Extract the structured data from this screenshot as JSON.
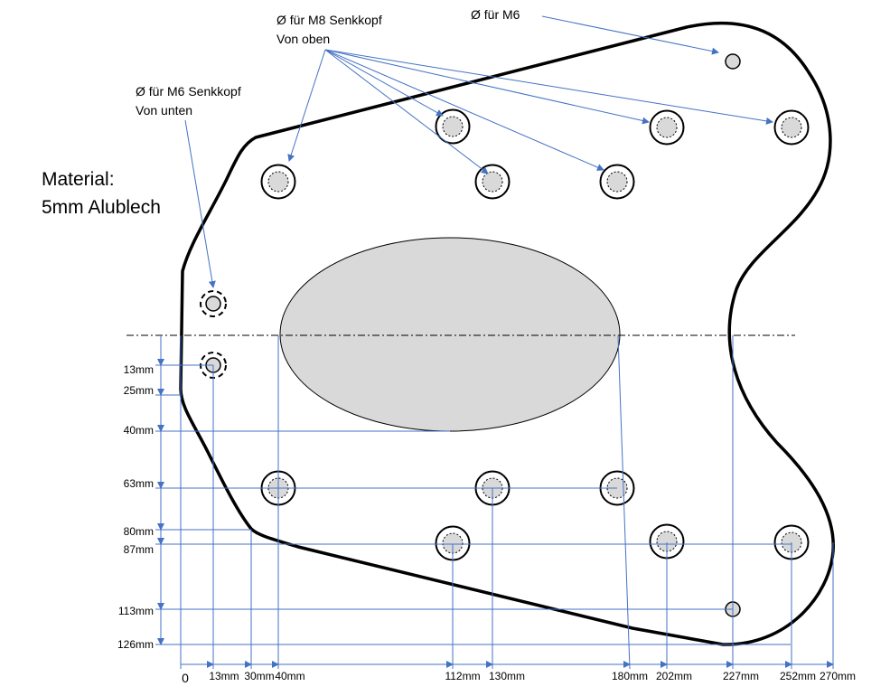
{
  "annotations": [
    {
      "lines": [
        "Ø für M8 Senkkopf",
        "Von oben"
      ]
    },
    {
      "lines": [
        "Ø für M6"
      ]
    },
    {
      "lines": [
        "Ø für M6 Senkkopf",
        "Von unten"
      ]
    }
  ],
  "material": [
    "Material:",
    "5mm Alublech"
  ],
  "vertical_dims": [
    "13mm",
    "25mm",
    "40mm",
    "63mm",
    "80mm",
    "87mm",
    "113mm",
    "126mm"
  ],
  "horizontal_dims": [
    "0",
    "13mm",
    "30mm",
    "40mm",
    "112mm",
    "130mm",
    "180mm",
    "202mm",
    "227mm",
    "252mm",
    "270mm"
  ]
}
